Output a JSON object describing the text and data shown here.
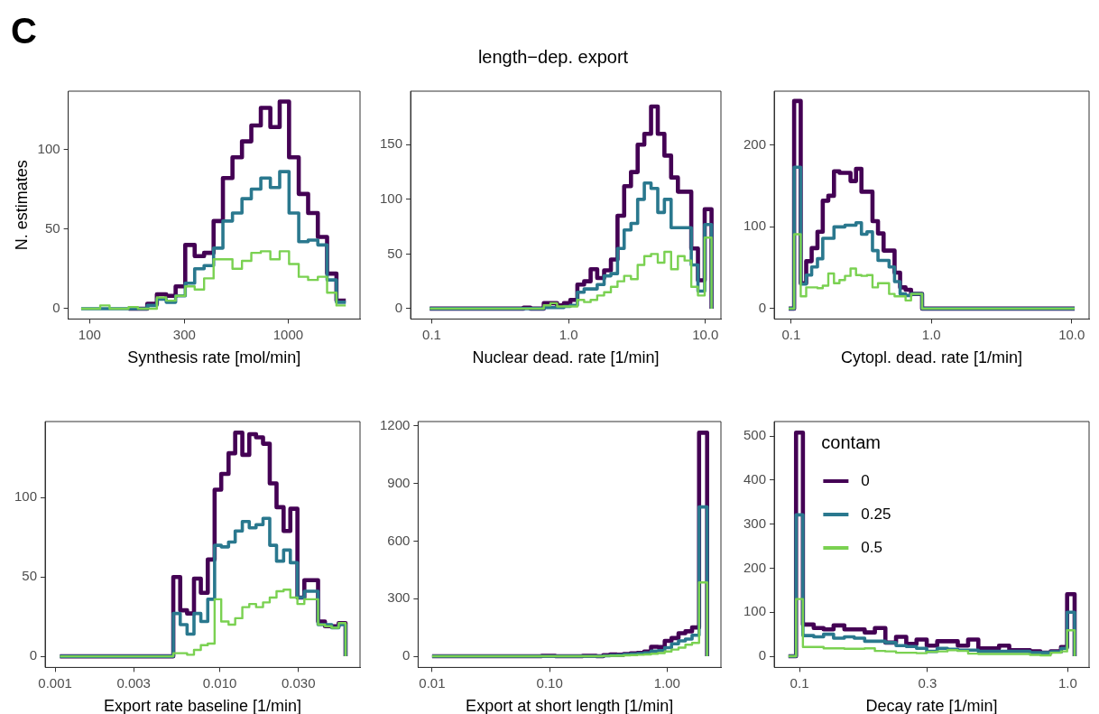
{
  "chart_data": [
    {
      "type": "step",
      "annotations": [
        "C"
      ],
      "xlabel": "Synthesis rate [mol/min]",
      "ylabel": "N. estimates",
      "log": "x",
      "xlim": [
        78,
        2300
      ],
      "ylim": [
        -6.5,
        136.5
      ],
      "xticks": [
        100,
        300,
        1000
      ],
      "yticks": [
        0,
        50,
        100
      ],
      "x": [
        90.6,
        101,
        113,
        126,
        141,
        157,
        175,
        195,
        218,
        243,
        271,
        303,
        338,
        377,
        421,
        469,
        524,
        585,
        652,
        728,
        813,
        906,
        1010,
        1130,
        1260,
        1410,
        1570,
        1750,
        1950
      ],
      "series": [
        {
          "color": "#440154",
          "values": [
            null,
            null,
            null,
            null,
            null,
            0,
            0,
            3,
            9,
            8,
            14,
            40,
            33,
            35,
            55,
            82,
            95,
            105,
            115,
            126,
            114,
            130,
            95,
            72,
            60,
            45,
            22,
            5,
            5
          ]
        },
        {
          "color": "#2a788e",
          "values": [
            0,
            0,
            0,
            0,
            0,
            0,
            0,
            2,
            6,
            4,
            8,
            16,
            25,
            27,
            38,
            55,
            60,
            69,
            75,
            82,
            76,
            86,
            60,
            42,
            43,
            40,
            18,
            4,
            4
          ]
        },
        {
          "color": "#7ad151",
          "values": [
            0,
            0,
            2,
            0,
            0,
            1,
            0,
            0,
            7,
            5,
            8,
            14,
            12,
            19,
            31,
            31,
            25,
            30,
            35,
            36,
            31,
            36,
            28,
            20,
            18,
            20,
            10,
            2,
            2
          ]
        }
      ]
    },
    {
      "type": "step",
      "title": "length−dep. export",
      "xlabel": "Nuclear dead. rate [1/min]",
      "log": "x",
      "xlim": [
        0.07,
        13
      ],
      "ylim": [
        -9.5,
        199
      ],
      "xticks": [
        0.1,
        {
          "value": 1,
          "label": "1.0"
        },
        {
          "value": 10,
          "label": "10.0"
        }
      ],
      "yticks": [
        0,
        50,
        100,
        150
      ],
      "x": [
        0.0967,
        0.375,
        0.419,
        0.469,
        0.526,
        0.588,
        0.659,
        0.737,
        0.825,
        0.924,
        1.03,
        1.16,
        1.3,
        1.45,
        1.62,
        1.82,
        2.04,
        2.28,
        2.55,
        2.86,
        3.2,
        3.58,
        4.01,
        4.49,
        5.02,
        5.62,
        6.3,
        7.05,
        7.89,
        8.83,
        9.89,
        11.1
      ],
      "series": [
        {
          "color": "#440154",
          "values": [
            0,
            0,
            0,
            1,
            0,
            0,
            5,
            5,
            3,
            5,
            8,
            22,
            25,
            36,
            28,
            35,
            45,
            85,
            112,
            125,
            150,
            160,
            185,
            160,
            140,
            120,
            107,
            107,
            55,
            26,
            91,
            0
          ]
        },
        {
          "color": "#2a788e",
          "values": [
            0,
            0,
            0,
            0,
            0,
            0,
            1,
            1,
            1,
            2,
            3,
            15,
            18,
            18,
            22,
            30,
            32,
            55,
            72,
            78,
            100,
            115,
            110,
            88,
            100,
            74,
            74,
            74,
            40,
            16,
            77,
            0
          ]
        },
        {
          "color": "#7ad151",
          "values": [
            0,
            0,
            0,
            0,
            0,
            0,
            3,
            5,
            2,
            2,
            2,
            8,
            6,
            8,
            12,
            15,
            20,
            25,
            30,
            27,
            40,
            48,
            50,
            42,
            52,
            36,
            48,
            44,
            20,
            12,
            65,
            0
          ]
        }
      ]
    },
    {
      "type": "step",
      "xlabel": "Cytopl. dead. rate [1/min]",
      "log": "x",
      "xlim": [
        0.0757,
        13.3
      ],
      "ylim": [
        -12.7,
        266
      ],
      "xticks": [
        0.1,
        {
          "value": 1,
          "label": "1.0"
        },
        {
          "value": 10,
          "label": "10.0"
        }
      ],
      "yticks": [
        0,
        100,
        200
      ],
      "x": [
        0.0961,
        0.105,
        0.117,
        0.128,
        0.14,
        0.154,
        0.168,
        0.184,
        0.202,
        0.221,
        0.242,
        0.265,
        0.29,
        0.317,
        0.347,
        0.38,
        0.416,
        0.456,
        0.499,
        0.546,
        0.598,
        0.654,
        0.716,
        0.784,
        0.858,
        0.94,
        10.5
      ],
      "series": [
        {
          "color": "#440154",
          "values": [
            0,
            254,
            31,
            58,
            74,
            94,
            132,
            138,
            168,
            166,
            166,
            156,
            171,
            143,
            143,
            107,
            92,
            71,
            71,
            44,
            26,
            23,
            18,
            18,
            0,
            0,
            0
          ]
        },
        {
          "color": "#2a788e",
          "values": [
            0,
            173,
            30,
            41,
            51,
            61,
            86,
            86,
            100,
            100,
            102,
            102,
            105,
            91,
            94,
            71,
            59,
            59,
            51,
            33,
            18,
            16,
            18,
            18,
            0,
            0,
            0
          ]
        },
        {
          "color": "#7ad151",
          "values": [
            0,
            91,
            15,
            26,
            26,
            25,
            28,
            43,
            31,
            35,
            40,
            49,
            41,
            40,
            41,
            26,
            31,
            31,
            18,
            15,
            15,
            10,
            18,
            18,
            0,
            0,
            0
          ]
        }
      ]
    },
    {
      "type": "step",
      "xlabel": "Export rate baseline [1/min]",
      "log": "x",
      "xlim": [
        0.00087,
        0.071
      ],
      "ylim": [
        -7,
        148
      ],
      "xticks": [
        0.001,
        0.003,
        {
          "value": 0.01,
          "label": "0.010"
        },
        {
          "value": 0.03,
          "label": "0.030"
        }
      ],
      "yticks": [
        0,
        50,
        100
      ],
      "x": [
        0.00107,
        0.00522,
        0.00575,
        0.00633,
        0.00697,
        0.00767,
        0.00845,
        0.0093,
        0.0102,
        0.0113,
        0.0124,
        0.0137,
        0.0151,
        0.0166,
        0.0183,
        0.0201,
        0.0221,
        0.0244,
        0.0268,
        0.0296,
        0.0326,
        0.0358,
        0.0395,
        0.0435,
        0.0478,
        0.0527,
        0.058
      ],
      "series": [
        {
          "color": "#440154",
          "values": [
            0,
            50,
            29,
            27,
            49,
            40,
            61,
            105,
            115,
            128,
            141,
            127,
            140,
            138,
            134,
            109,
            94,
            79,
            93,
            37,
            48,
            48,
            22,
            19,
            19,
            21,
            0
          ]
        },
        {
          "color": "#2a788e",
          "values": [
            0,
            27,
            20,
            14,
            27,
            22,
            36,
            70,
            69,
            72,
            79,
            85,
            81,
            83,
            87,
            70,
            60,
            67,
            59,
            37,
            41,
            41,
            20,
            20,
            18,
            20,
            0
          ]
        },
        {
          "color": "#7ad151",
          "values": [
            0,
            2,
            2,
            1,
            4,
            7,
            8,
            36,
            22,
            20,
            24,
            31,
            33,
            31,
            34,
            37,
            41,
            42,
            37,
            33,
            36,
            36,
            20,
            19,
            18,
            21,
            0
          ]
        }
      ]
    },
    {
      "type": "step",
      "xlabel": "Export at short length [1/min]",
      "log": "x",
      "xlim": [
        0.0076,
        2.87
      ],
      "ylim": [
        -58,
        1223
      ],
      "xticks": [
        0.01,
        {
          "value": 0.1,
          "label": "0.10"
        },
        {
          "value": 1,
          "label": "1.00"
        }
      ],
      "yticks": [
        0,
        300,
        600,
        900,
        1200
      ],
      "x": [
        0.01,
        0.0747,
        0.0854,
        0.0977,
        0.112,
        0.128,
        0.146,
        0.167,
        0.191,
        0.218,
        0.25,
        0.286,
        0.327,
        0.373,
        0.427,
        0.488,
        0.558,
        0.638,
        0.73,
        0.835,
        0.954,
        1.09,
        1.25,
        1.43,
        1.63,
        1.87,
        2.19
      ],
      "series": [
        {
          "color": "#440154",
          "values": [
            0,
            0,
            3,
            3,
            0,
            0,
            0,
            0,
            3,
            3,
            0,
            6,
            9,
            8,
            12,
            15,
            18,
            25,
            50,
            48,
            80,
            95,
            120,
            130,
            150,
            1165,
            0
          ]
        },
        {
          "color": "#2a788e",
          "values": [
            0,
            0,
            0,
            0,
            0,
            0,
            0,
            0,
            0,
            0,
            0,
            3,
            5,
            6,
            9,
            12,
            14,
            18,
            27,
            30,
            45,
            65,
            80,
            90,
            110,
            778,
            0
          ]
        },
        {
          "color": "#7ad151",
          "values": [
            0,
            0,
            0,
            0,
            0,
            0,
            0,
            0,
            0,
            0,
            0,
            2,
            3,
            3,
            5,
            6,
            8,
            10,
            13,
            17,
            25,
            35,
            45,
            60,
            70,
            385,
            0
          ]
        }
      ]
    },
    {
      "type": "step",
      "xlabel": "Decay rate [1/min]",
      "log": "x",
      "xlim": [
        0.0805,
        1.2
      ],
      "ylim": [
        -25.4,
        533
      ],
      "xticks": [
        0.1,
        0.3,
        {
          "value": 1,
          "label": "1.0"
        }
      ],
      "yticks": [
        0,
        100,
        200,
        300,
        400,
        500
      ],
      "legend": "top left",
      "legend_title": "contam",
      "x": [
        0.091,
        0.0971,
        0.103,
        0.113,
        0.123,
        0.134,
        0.147,
        0.16,
        0.175,
        0.191,
        0.209,
        0.229,
        0.25,
        0.273,
        0.298,
        0.326,
        0.356,
        0.389,
        0.425,
        0.464,
        0.507,
        0.554,
        0.605,
        0.661,
        0.723,
        0.79,
        0.863,
        0.943,
        0.994,
        1.06
      ],
      "series": [
        {
          "name": "0",
          "color": "#440154",
          "values": [
            0,
            508,
            72,
            64,
            61,
            70,
            61,
            61,
            54,
            64,
            31,
            44,
            28,
            38,
            24,
            34,
            34,
            24,
            38,
            18,
            18,
            24,
            14,
            14,
            11,
            8,
            11,
            21,
            141,
            0
          ]
        },
        {
          "name": "0.25",
          "color": "#2a788e",
          "values": [
            0,
            321,
            47,
            44,
            50,
            41,
            44,
            41,
            34,
            34,
            31,
            24,
            22,
            18,
            11,
            18,
            16,
            14,
            14,
            11,
            11,
            11,
            11,
            11,
            8,
            8,
            10,
            18,
            100,
            0
          ]
        },
        {
          "name": "0.5",
          "color": "#7ad151",
          "values": [
            0,
            130,
            21,
            21,
            18,
            18,
            17,
            17,
            18,
            12,
            11,
            8,
            8,
            7,
            10,
            11,
            14,
            12,
            6,
            5,
            5,
            5,
            5,
            5,
            3,
            2,
            8,
            11,
            59,
            0
          ]
        }
      ]
    }
  ]
}
